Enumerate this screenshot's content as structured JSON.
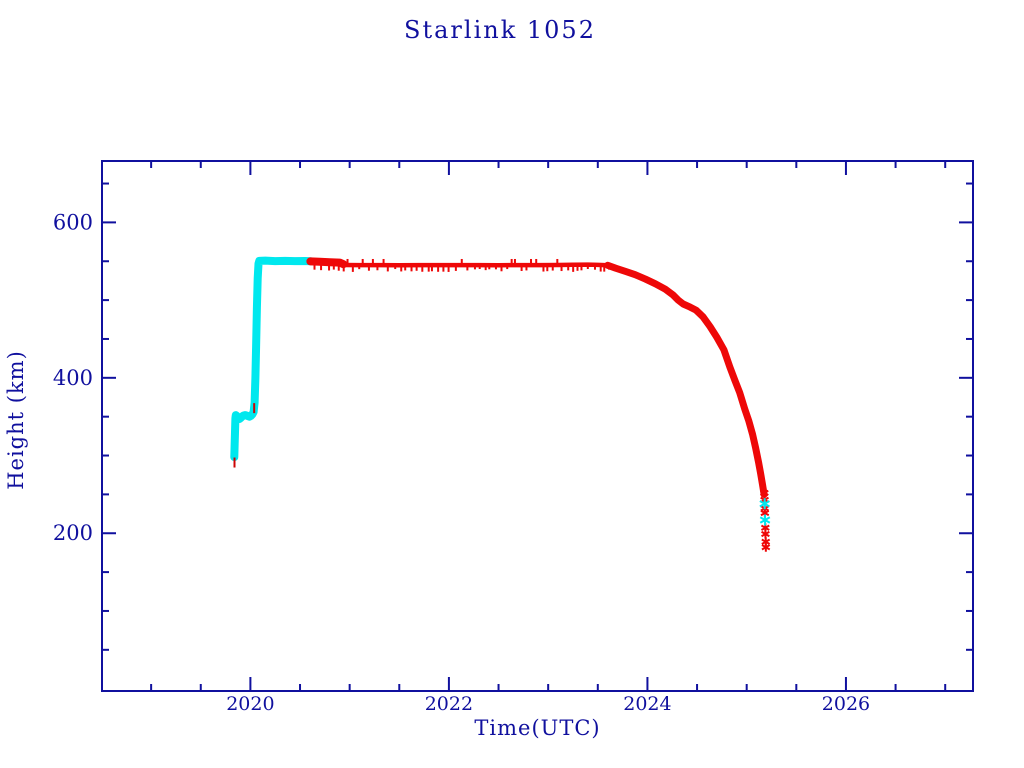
{
  "title": "Starlink 1052",
  "chart_data": {
    "type": "line",
    "title": "Starlink 1052",
    "xlabel": "Time(UTC)",
    "ylabel": "Height (km)",
    "xlim": [
      2018.505,
      2027.28
    ],
    "ylim": [
      -3,
      679
    ],
    "x_major_ticks": [
      2020,
      2022,
      2024,
      2026
    ],
    "x_minor_step": 0.5,
    "y_major_ticks": [
      200,
      400,
      600
    ],
    "y_minor_step": 50,
    "grid": false,
    "legend": "none",
    "axis_color": "#10109e",
    "background_color": "#ffffff",
    "series": [
      {
        "name": "ascent-cyan",
        "color": "#00e8ee",
        "width": 8,
        "points": [
          [
            2019.838,
            298
          ],
          [
            2019.841,
            312
          ],
          [
            2019.845,
            330
          ],
          [
            2019.849,
            348
          ],
          [
            2019.853,
            352
          ],
          [
            2019.862,
            351
          ],
          [
            2019.875,
            349
          ],
          [
            2019.888,
            347
          ],
          [
            2019.9,
            348
          ],
          [
            2019.915,
            350
          ],
          [
            2019.93,
            351.5
          ],
          [
            2019.95,
            352
          ],
          [
            2019.97,
            351
          ],
          [
            2019.99,
            350
          ],
          [
            2020.005,
            351
          ],
          [
            2020.02,
            353
          ],
          [
            2020.032,
            356
          ],
          [
            2020.042,
            368
          ],
          [
            2020.05,
            400
          ],
          [
            2020.058,
            440
          ],
          [
            2020.066,
            490
          ],
          [
            2020.074,
            528
          ],
          [
            2020.082,
            547
          ],
          [
            2020.09,
            550.5
          ],
          [
            2020.15,
            550.8
          ],
          [
            2020.25,
            550.2
          ],
          [
            2020.35,
            550.4
          ],
          [
            2020.45,
            550.2
          ],
          [
            2020.55,
            550.3
          ],
          [
            2020.61,
            550
          ]
        ]
      },
      {
        "name": "red-start-thick",
        "color": "#ee0808",
        "width": 8,
        "points": [
          [
            2020.605,
            549.8
          ],
          [
            2020.7,
            549.4
          ],
          [
            2020.8,
            548.8
          ],
          [
            2020.9,
            548.3
          ],
          [
            2020.937,
            546.2
          ]
        ]
      },
      {
        "name": "red-plateau",
        "color": "#ee0808",
        "width": 4.5,
        "points": [
          [
            2020.937,
            545.2
          ],
          [
            2021.1,
            545
          ],
          [
            2021.3,
            545.1
          ],
          [
            2021.5,
            544.9
          ],
          [
            2021.7,
            545
          ],
          [
            2021.9,
            545.1
          ],
          [
            2022.1,
            545
          ],
          [
            2022.3,
            545.1
          ],
          [
            2022.5,
            544.9
          ],
          [
            2022.7,
            545
          ],
          [
            2022.9,
            545.1
          ],
          [
            2023.1,
            545.2
          ],
          [
            2023.25,
            545.5
          ],
          [
            2023.4,
            545.7
          ],
          [
            2023.5,
            545.3
          ],
          [
            2023.6,
            544.8
          ]
        ]
      },
      {
        "name": "red-decay",
        "color": "#ee0808",
        "width": 7,
        "points": [
          [
            2023.6,
            544.8
          ],
          [
            2023.68,
            541
          ],
          [
            2023.78,
            537
          ],
          [
            2023.88,
            532.5
          ],
          [
            2023.98,
            527
          ],
          [
            2024.08,
            521
          ],
          [
            2024.18,
            514
          ],
          [
            2024.26,
            506.5
          ],
          [
            2024.31,
            500
          ],
          [
            2024.36,
            495
          ],
          [
            2024.43,
            491
          ],
          [
            2024.49,
            487
          ],
          [
            2024.56,
            478.5
          ],
          [
            2024.63,
            466
          ],
          [
            2024.7,
            452
          ],
          [
            2024.77,
            436
          ],
          [
            2024.83,
            414
          ],
          [
            2024.88,
            397
          ],
          [
            2024.93,
            381
          ],
          [
            2024.98,
            360
          ],
          [
            2025.02,
            345
          ],
          [
            2025.06,
            327
          ],
          [
            2025.09,
            310
          ],
          [
            2025.12,
            291
          ],
          [
            2025.14,
            277
          ],
          [
            2025.16,
            262
          ],
          [
            2025.175,
            250
          ]
        ]
      }
    ],
    "scatter": [
      {
        "name": "deorbit-tail-red-asterisks",
        "color": "#ee0808",
        "marker": "asterisk",
        "size": 4.5,
        "points": [
          [
            2025.178,
            252
          ],
          [
            2025.18,
            243
          ],
          [
            2025.182,
            232
          ],
          [
            2025.183,
            226
          ],
          [
            2025.188,
            207
          ],
          [
            2025.189,
            199
          ],
          [
            2025.192,
            189
          ],
          [
            2025.193,
            182
          ]
        ]
      },
      {
        "name": "deorbit-tail-cyan-asterisks",
        "color": "#00e8ee",
        "marker": "asterisk",
        "size": 5.5,
        "points": [
          [
            2025.181,
            238
          ],
          [
            2025.185,
            217
          ]
        ]
      },
      {
        "name": "early-red-dashes",
        "color": "#cc0505",
        "marker": "vdash",
        "size": 5,
        "points": [
          [
            2019.84,
            291
          ],
          [
            2020.038,
            361
          ]
        ]
      }
    ],
    "texture": {
      "name": "plateau-point-dashes",
      "t_start": 2020.64,
      "t_end": 2023.62,
      "height": 545.2,
      "color": "#ee0808"
    }
  }
}
